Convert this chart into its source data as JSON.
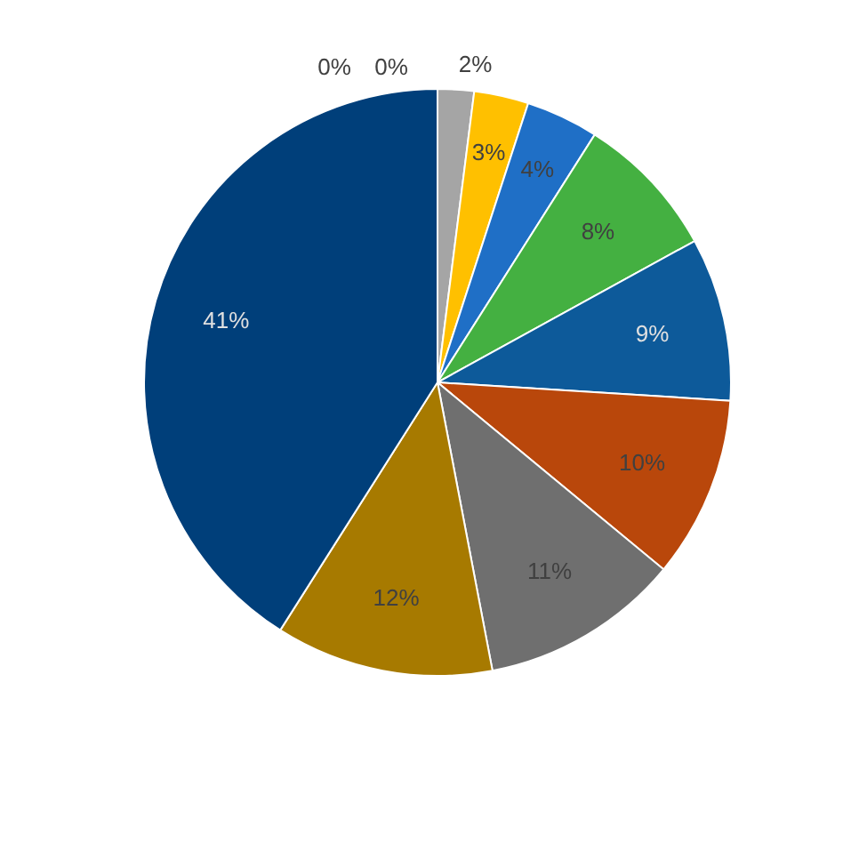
{
  "chart_data": {
    "type": "pie",
    "categories": [
      null,
      null,
      null,
      null,
      null,
      null,
      null,
      null,
      null,
      null,
      null
    ],
    "values": [
      2,
      3,
      4,
      8,
      9,
      10,
      11,
      12,
      41,
      0,
      0
    ],
    "value_labels": [
      "2%",
      "3%",
      "4%",
      "8%",
      "9%",
      "10%",
      "11%",
      "12%",
      "41%",
      "0%",
      "0%"
    ],
    "colors": [
      "#a5a5a5",
      "#ffc000",
      "#1f6fc6",
      "#44b041",
      "#0d5a9a",
      "#b9470b",
      "#6f6f6f",
      "#a77a00",
      "#003f7a",
      "#2f5597",
      "#7f7f7f"
    ],
    "legend": false
  }
}
